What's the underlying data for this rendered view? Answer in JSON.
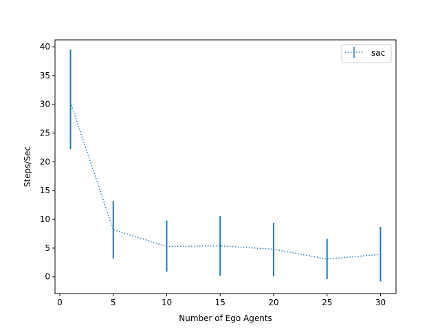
{
  "chart_data": {
    "type": "line",
    "title": "",
    "xlabel": "Number of Ego Agents",
    "ylabel": "Steps/Sec",
    "xlim": [
      -0.45,
      31.45
    ],
    "ylim": [
      -2.9,
      41.2
    ],
    "xticks": [
      0,
      5,
      10,
      15,
      20,
      25,
      30
    ],
    "yticks": [
      0,
      5,
      10,
      15,
      20,
      25,
      30,
      35,
      40
    ],
    "grid": false,
    "legend_position": "top-right",
    "series": [
      {
        "name": "sac",
        "color": "#1f77b4",
        "line_style": "dotted",
        "error_bars": true,
        "x": [
          1,
          5,
          10,
          15,
          20,
          25,
          30
        ],
        "y": [
          30.3,
          8.2,
          5.3,
          5.4,
          4.8,
          3.1,
          3.9
        ],
        "yerr_low": [
          22.2,
          3.2,
          0.9,
          0.2,
          0.1,
          -0.4,
          -0.8
        ],
        "yerr_high": [
          39.5,
          13.2,
          9.8,
          10.6,
          9.4,
          6.6,
          8.7
        ]
      }
    ]
  }
}
